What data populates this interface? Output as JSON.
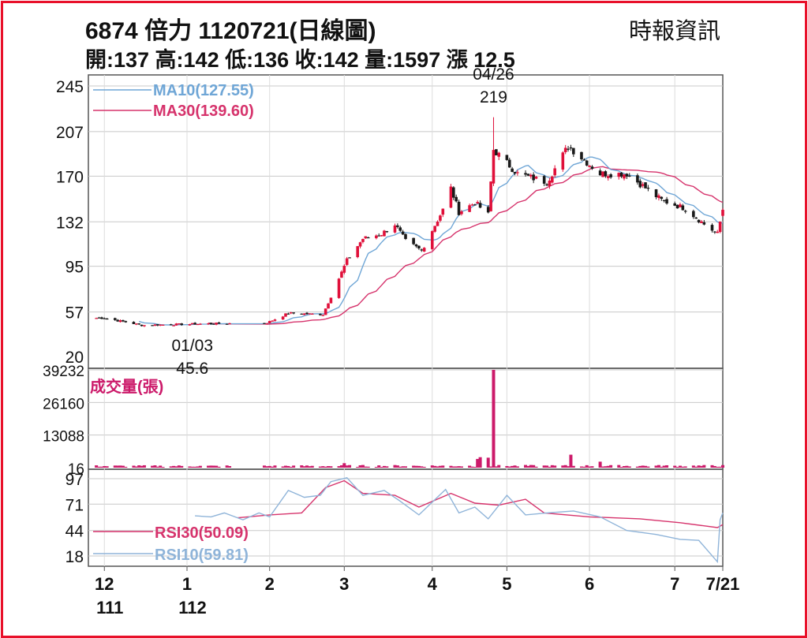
{
  "header": {
    "title": "6874  倍力 1120721(日線圖)",
    "source": "時報資訊",
    "stats": "開:137 高:142 低:136 收:142 量:1597 漲 12.5"
  },
  "colors": {
    "up": "#e0103a",
    "down": "#1a1a1a",
    "ma10": "#6fa6d6",
    "ma30": "#d6336c",
    "volume": "#cc1a6a",
    "rsi30": "#d6336c",
    "rsi10": "#8fb4d9",
    "frame": "#e8102a",
    "grid": "#c8c8c8"
  },
  "chart_data": [
    {
      "type": "candlestick",
      "panel": "price",
      "y_ticks": [
        245,
        207,
        170,
        132,
        95,
        57,
        20
      ],
      "ylim": [
        20,
        245
      ],
      "legend": [
        {
          "label": "MA10(127.55)",
          "color": "#6fa6d6"
        },
        {
          "label": "MA30(139.60)",
          "color": "#d6336c"
        }
      ],
      "annotations": [
        {
          "date": "04/26",
          "value": "219",
          "label_date": "04/26",
          "label_value": "219"
        },
        {
          "date": "01/03",
          "value": "45.6",
          "label_date": "01/03",
          "label_value": "45.6"
        }
      ],
      "anchor_points": [
        {
          "date": "2022-12-01",
          "close": 52
        },
        {
          "date": "2022-12-15",
          "close": 46
        },
        {
          "date": "2023-01-03",
          "close": 47
        },
        {
          "date": "2023-01-31",
          "close": 48
        },
        {
          "date": "2023-02-08",
          "close": 56
        },
        {
          "date": "2023-02-21",
          "close": 55
        },
        {
          "date": "2023-03-02",
          "close": 100
        },
        {
          "date": "2023-03-08",
          "close": 118
        },
        {
          "date": "2023-03-15",
          "close": 122
        },
        {
          "date": "2023-03-20",
          "close": 130
        },
        {
          "date": "2023-03-24",
          "close": 116
        },
        {
          "date": "2023-03-30",
          "close": 108
        },
        {
          "date": "2023-04-07",
          "close": 142
        },
        {
          "date": "2023-04-10",
          "close": 160
        },
        {
          "date": "2023-04-13",
          "close": 140
        },
        {
          "date": "2023-04-19",
          "close": 148
        },
        {
          "date": "2023-04-24",
          "close": 138
        },
        {
          "date": "2023-04-26",
          "close": 192
        },
        {
          "date": "2023-05-05",
          "close": 172
        },
        {
          "date": "2023-05-16",
          "close": 165
        },
        {
          "date": "2023-05-24",
          "close": 195
        },
        {
          "date": "2023-06-05",
          "close": 172
        },
        {
          "date": "2023-06-15",
          "close": 172
        },
        {
          "date": "2023-06-28",
          "close": 150
        },
        {
          "date": "2023-07-07",
          "close": 143
        },
        {
          "date": "2023-07-14",
          "close": 130
        },
        {
          "date": "2023-07-19",
          "close": 122
        },
        {
          "date": "2023-07-21",
          "close": 142
        }
      ],
      "last_candle": {
        "date": "2023-07-21",
        "open": 137,
        "high": 142,
        "low": 136,
        "close": 142
      }
    },
    {
      "type": "bar",
      "panel": "volume",
      "title": "成交量(張)",
      "y_ticks": [
        39232,
        26160,
        13088,
        16
      ],
      "ylim": [
        16,
        39232
      ],
      "spikes": [
        {
          "date": "2023-04-20",
          "value": 3500
        },
        {
          "date": "2023-04-21",
          "value": 4200
        },
        {
          "date": "2023-04-24",
          "value": 4000
        },
        {
          "date": "2023-04-26",
          "value": 39232
        },
        {
          "date": "2023-05-25",
          "value": 5200
        },
        {
          "date": "2023-06-05",
          "value": 2400
        },
        {
          "date": "2023-03-01",
          "value": 1800
        }
      ],
      "base_level": 900
    },
    {
      "type": "line",
      "panel": "rsi",
      "y_ticks": [
        97,
        71,
        44,
        18
      ],
      "ylim": [
        10,
        100
      ],
      "series": [
        {
          "name": "RSI30(50.09)",
          "color": "#d6336c",
          "points": [
            {
              "date": "2023-01-20",
              "value": 57
            },
            {
              "date": "2023-02-01",
              "value": 60
            },
            {
              "date": "2023-02-13",
              "value": 62
            },
            {
              "date": "2023-02-22",
              "value": 88
            },
            {
              "date": "2023-03-01",
              "value": 95
            },
            {
              "date": "2023-03-08",
              "value": 82
            },
            {
              "date": "2023-03-20",
              "value": 80
            },
            {
              "date": "2023-03-29",
              "value": 68
            },
            {
              "date": "2023-04-10",
              "value": 82
            },
            {
              "date": "2023-04-19",
              "value": 72
            },
            {
              "date": "2023-04-28",
              "value": 70
            },
            {
              "date": "2023-05-08",
              "value": 76
            },
            {
              "date": "2023-05-15",
              "value": 62
            },
            {
              "date": "2023-06-01",
              "value": 58
            },
            {
              "date": "2023-06-20",
              "value": 56
            },
            {
              "date": "2023-07-05",
              "value": 52
            },
            {
              "date": "2023-07-19",
              "value": 47
            },
            {
              "date": "2023-07-21",
              "value": 50
            }
          ]
        },
        {
          "name": "RSI10(59.81)",
          "color": "#8fb4d9",
          "points": [
            {
              "date": "2023-01-04",
              "value": 59
            },
            {
              "date": "2023-01-10",
              "value": 58
            },
            {
              "date": "2023-01-15",
              "value": 62
            },
            {
              "date": "2023-01-22",
              "value": 55
            },
            {
              "date": "2023-01-28",
              "value": 62
            },
            {
              "date": "2023-02-01",
              "value": 58
            },
            {
              "date": "2023-02-08",
              "value": 85
            },
            {
              "date": "2023-02-14",
              "value": 78
            },
            {
              "date": "2023-02-20",
              "value": 80
            },
            {
              "date": "2023-02-24",
              "value": 94
            },
            {
              "date": "2023-03-02",
              "value": 98
            },
            {
              "date": "2023-03-08",
              "value": 80
            },
            {
              "date": "2023-03-16",
              "value": 85
            },
            {
              "date": "2023-03-22",
              "value": 74
            },
            {
              "date": "2023-03-29",
              "value": 60
            },
            {
              "date": "2023-04-08",
              "value": 86
            },
            {
              "date": "2023-04-13",
              "value": 62
            },
            {
              "date": "2023-04-19",
              "value": 68
            },
            {
              "date": "2023-04-24",
              "value": 56
            },
            {
              "date": "2023-05-01",
              "value": 80
            },
            {
              "date": "2023-05-08",
              "value": 60
            },
            {
              "date": "2023-05-16",
              "value": 62
            },
            {
              "date": "2023-05-26",
              "value": 64
            },
            {
              "date": "2023-06-05",
              "value": 58
            },
            {
              "date": "2023-06-15",
              "value": 44
            },
            {
              "date": "2023-06-26",
              "value": 40
            },
            {
              "date": "2023-07-05",
              "value": 35
            },
            {
              "date": "2023-07-12",
              "value": 34
            },
            {
              "date": "2023-07-19",
              "value": 12
            },
            {
              "date": "2023-07-20",
              "value": 55
            },
            {
              "date": "2023-07-21",
              "value": 62
            }
          ]
        }
      ]
    }
  ],
  "x_axis": {
    "ticks": [
      {
        "date": "2022-12-01",
        "label": "12",
        "sub": "111"
      },
      {
        "date": "2023-01-01",
        "label": "1",
        "sub": "112"
      },
      {
        "date": "2023-02-01",
        "label": "2",
        "sub": ""
      },
      {
        "date": "2023-03-01",
        "label": "3",
        "sub": ""
      },
      {
        "date": "2023-04-03",
        "label": "4",
        "sub": ""
      },
      {
        "date": "2023-05-01",
        "label": "5",
        "sub": ""
      },
      {
        "date": "2023-06-01",
        "label": "6",
        "sub": ""
      },
      {
        "date": "2023-07-03",
        "label": "7",
        "sub": ""
      },
      {
        "date": "2023-07-21",
        "label": "7/21",
        "sub": ""
      }
    ]
  }
}
